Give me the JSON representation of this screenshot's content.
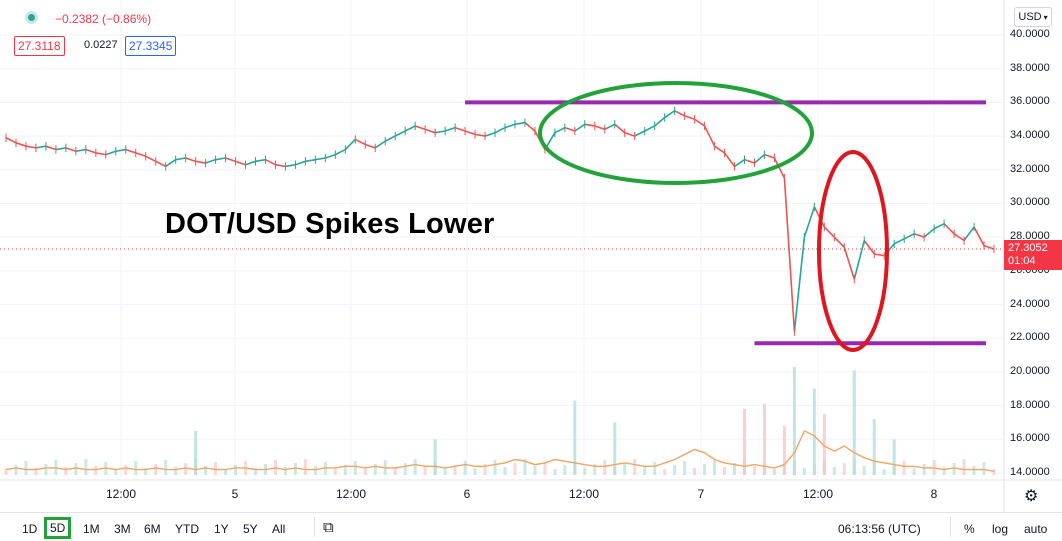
{
  "header": {
    "change_text": "−0.2382 (−0.86%)",
    "bid": "27.3118",
    "spread": "0.0227",
    "ask": "27.3345",
    "currency_selector": "USD",
    "colors": {
      "down": "#f23645",
      "up": "#2962ff",
      "dot": "#26a69a"
    }
  },
  "headline": "DOT/USD Spikes Lower",
  "price_label": {
    "price": "27.3052",
    "countdown": "01:04",
    "color": "#f23645"
  },
  "y_axis": {
    "ticks": [
      "40.0000",
      "38.0000",
      "36.0000",
      "34.0000",
      "32.0000",
      "30.0000",
      "28.0000",
      "26.0000",
      "24.0000",
      "22.0000",
      "20.0000",
      "18.0000",
      "16.0000",
      "14.0000"
    ]
  },
  "x_axis": {
    "ticks": [
      "12:00",
      "5",
      "12:00",
      "6",
      "12:00",
      "7",
      "12:00",
      "8"
    ]
  },
  "annotations": {
    "resistance_value": 36.0,
    "support_value": 21.7,
    "line_color": "#9c27b0",
    "green_ellipse_color": "#22a33a",
    "red_ellipse_color": "#e0161e"
  },
  "chart_data": {
    "type": "line",
    "title": "DOT/USD Spikes Lower",
    "xlabel": "",
    "ylabel": "",
    "ylim": [
      14,
      40
    ],
    "x_ticks": [
      "12:00",
      "5",
      "12:00",
      "6",
      "12:00",
      "7",
      "12:00",
      "8"
    ],
    "series": [
      {
        "values": [
          33.9,
          33.6,
          33.4,
          33.3,
          33.4,
          33.2,
          33.3,
          33.1,
          33.2,
          33.0,
          32.9,
          33.1,
          33.2,
          33.0,
          32.8,
          32.5,
          32.2,
          32.6,
          32.7,
          32.5,
          32.4,
          32.6,
          32.7,
          32.5,
          32.3,
          32.5,
          32.6,
          32.3,
          32.2,
          32.3,
          32.5,
          32.6,
          32.7,
          32.9,
          33.2,
          33.8,
          33.5,
          33.3,
          33.7,
          34.0,
          34.3,
          34.6,
          34.4,
          34.2,
          34.3,
          34.5,
          34.3,
          34.1,
          34.0,
          34.2,
          34.5,
          34.7,
          34.8,
          34.3,
          33.2,
          34.2,
          34.5,
          34.3,
          34.7,
          34.6,
          34.4,
          34.7,
          34.2,
          34.0,
          34.3,
          34.6,
          35.1,
          35.5,
          35.2,
          35.0,
          34.6,
          33.4,
          33.0,
          32.2,
          32.6,
          32.4,
          32.9,
          32.7,
          31.5,
          22.4,
          28.0,
          29.8,
          28.6,
          28.0,
          27.4,
          25.5,
          27.8,
          27.0,
          26.9,
          27.6,
          27.9,
          28.2,
          28.0,
          28.5,
          28.8,
          28.2,
          27.8,
          28.6,
          27.5,
          27.3
        ]
      }
    ],
    "volume_ma": [
      14.2,
      14.3,
      14.2,
      14.2,
      14.3,
      14.3,
      14.2,
      14.3,
      14.2,
      14.2,
      14.3,
      14.2,
      14.3,
      14.2,
      14.2,
      14.3,
      14.2,
      14.2,
      14.3,
      14.2,
      14.3,
      14.2,
      14.2,
      14.3,
      14.3,
      14.2,
      14.2,
      14.3,
      14.2,
      14.3,
      14.2,
      14.2,
      14.3,
      14.3,
      14.4,
      14.4,
      14.3,
      14.4,
      14.3,
      14.3,
      14.4,
      14.5,
      14.4,
      14.4,
      14.3,
      14.4,
      14.5,
      14.4,
      14.4,
      14.5,
      14.6,
      14.8,
      14.7,
      14.5,
      14.6,
      14.8,
      14.7,
      14.6,
      14.5,
      14.4,
      14.4,
      14.5,
      14.6,
      14.5,
      14.4,
      14.4,
      14.6,
      14.8,
      15.1,
      15.4,
      15.2,
      14.8,
      14.6,
      14.5,
      14.4,
      14.5,
      14.4,
      14.3,
      14.5,
      15.2,
      16.5,
      16.2,
      15.6,
      15.3,
      15.6,
      15.2,
      14.9,
      14.7,
      14.6,
      14.5,
      14.4,
      14.4,
      14.3,
      14.3,
      14.2,
      14.3,
      14.2,
      14.2,
      14.2,
      14.1
    ],
    "volume_spikes": [
      {
        "i": 19,
        "v": 16.5
      },
      {
        "i": 43,
        "v": 16.0
      },
      {
        "i": 57,
        "v": 18.3
      },
      {
        "i": 61,
        "v": 17.0
      },
      {
        "i": 74,
        "v": 17.8
      },
      {
        "i": 76,
        "v": 18.1
      },
      {
        "i": 78,
        "v": 16.8
      },
      {
        "i": 79,
        "v": 20.3
      },
      {
        "i": 81,
        "v": 19.0
      },
      {
        "i": 82,
        "v": 17.5
      },
      {
        "i": 85,
        "v": 20.1
      },
      {
        "i": 87,
        "v": 17.2
      },
      {
        "i": 89,
        "v": 16.0
      }
    ],
    "horizontal_lines": [
      {
        "value": 36.0,
        "x_from_index": 46,
        "x_to_index": 99
      },
      {
        "value": 21.7,
        "x_from_index": 75,
        "x_to_index": 99
      }
    ],
    "grid": true,
    "legend": "none"
  },
  "bottom": {
    "periods": [
      "1D",
      "5D",
      "1M",
      "3M",
      "6M",
      "YTD",
      "1Y",
      "5Y",
      "All"
    ],
    "active_period": "5D",
    "clock": "06:13:56 (UTC)",
    "percent": "%",
    "log": "log",
    "auto": "auto"
  }
}
